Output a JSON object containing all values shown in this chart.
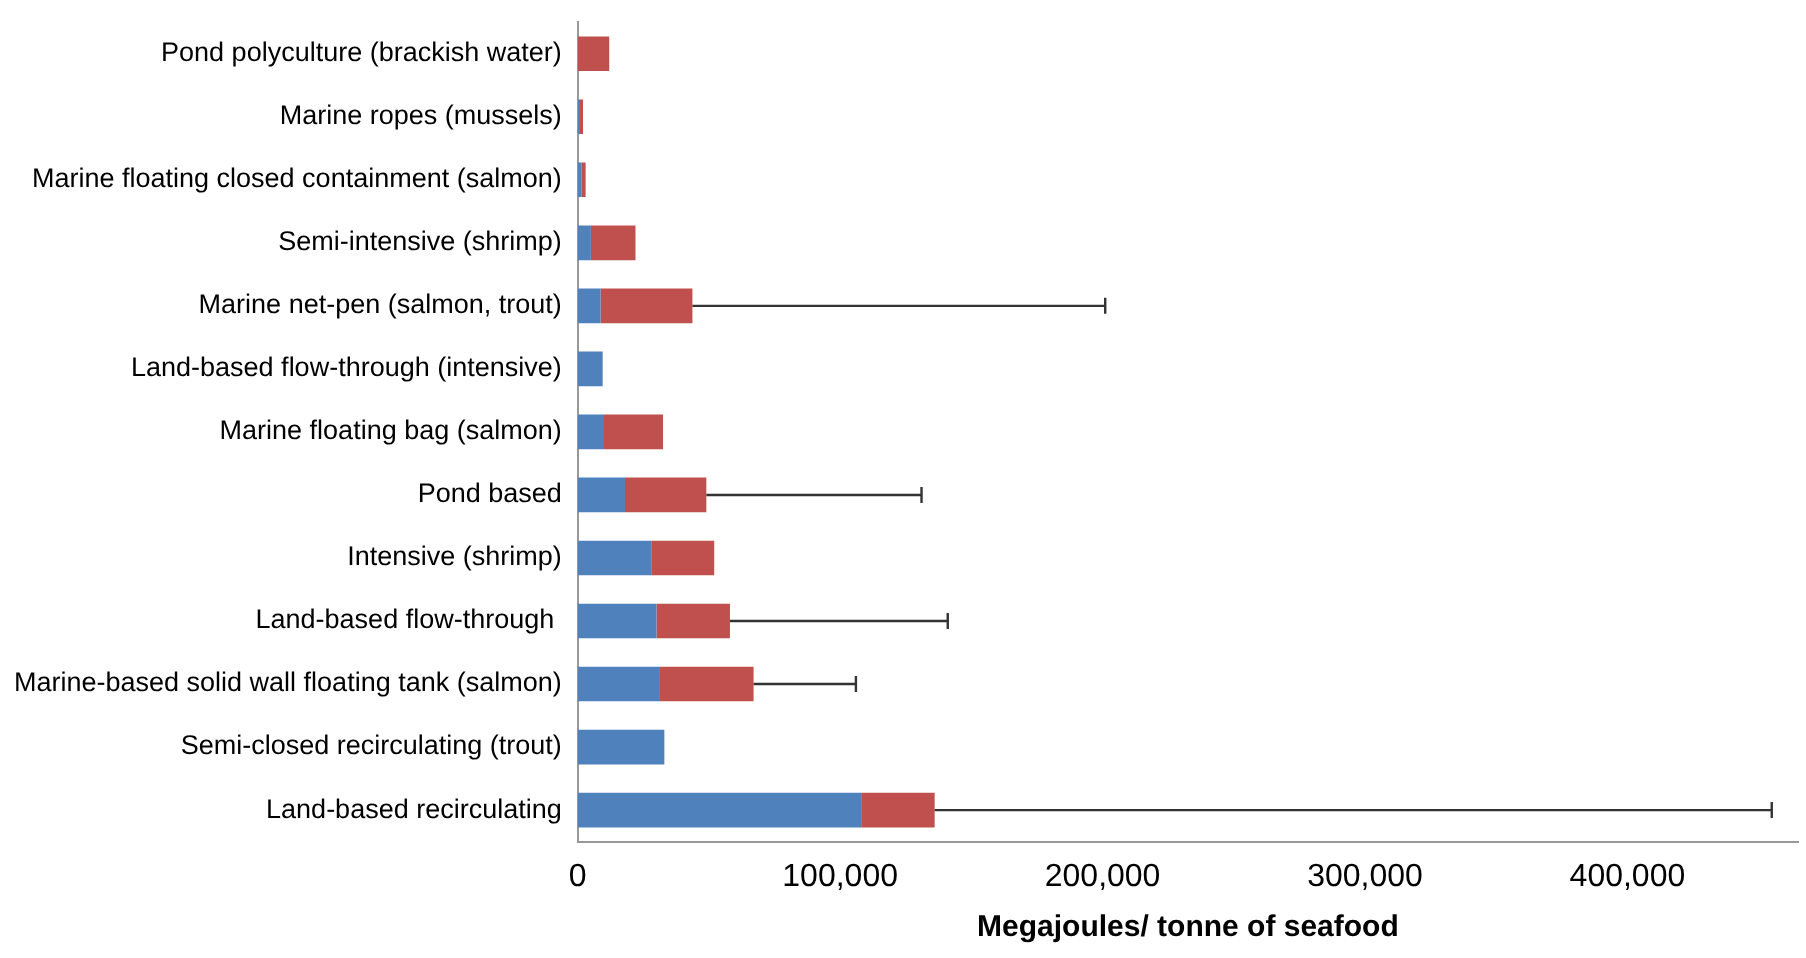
{
  "chart_data": {
    "type": "bar",
    "orientation": "horizontal",
    "stacked": true,
    "xlabel": "Megajoules/ tonne of seafood",
    "categories": [
      "Pond polyculture (brackish water)",
      "Marine ropes (mussels)",
      "Marine floating closed containment (salmon)",
      "Semi-intensive (shrimp)",
      "Marine net-pen (salmon, trout)",
      "Land-based flow-through (intensive)",
      "Marine floating bag (salmon)",
      "Pond based",
      "Intensive (shrimp)",
      "Land-based flow-through ",
      "Marine-based solid wall floating tank (salmon)",
      "Semi-closed recirculating (trout)",
      "Land-based recirculating"
    ],
    "series": [
      {
        "color": "#4f81bd",
        "values": [
          0,
          500,
          1500,
          5000,
          8700,
          9500,
          10000,
          18000,
          28000,
          30000,
          31000,
          33000,
          108000
        ]
      },
      {
        "color": "#c0504d",
        "values": [
          12000,
          1500,
          1500,
          17000,
          35000,
          0,
          22500,
          31000,
          24000,
          28000,
          36000,
          0,
          28000
        ],
        "errors": [
          null,
          null,
          null,
          null,
          [
            43700,
            201000
          ],
          null,
          null,
          [
            49000,
            131000
          ],
          null,
          [
            58000,
            141000
          ],
          [
            67000,
            106000
          ],
          null,
          [
            136000,
            455000
          ]
        ]
      }
    ],
    "xlim": [
      0,
      465000
    ],
    "xticks": [
      {
        "value": 0,
        "label": "0"
      },
      {
        "value": 100000,
        "label": "100,000"
      },
      {
        "value": 200000,
        "label": "200,000"
      },
      {
        "value": 300000,
        "label": "300,000"
      },
      {
        "value": 400000,
        "label": "400,000"
      }
    ],
    "grid": false,
    "legend": false
  }
}
